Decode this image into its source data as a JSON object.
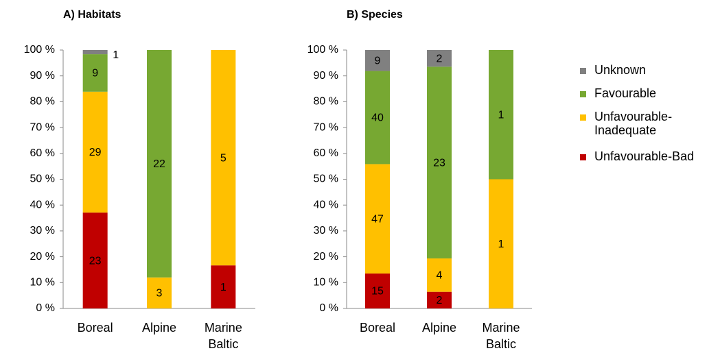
{
  "chart_data": [
    {
      "type": "bar",
      "stacked": "percent",
      "title": "A) Habitats",
      "categories": [
        "Boreal",
        "Alpine",
        "Marine\nBaltic"
      ],
      "series": [
        {
          "name": "Unfavourable-Bad",
          "color": "#c00000",
          "values": [
            23,
            null,
            1
          ]
        },
        {
          "name": "Unfavourable-\nInadequate",
          "color": "#ffc000",
          "values": [
            29,
            3,
            5
          ]
        },
        {
          "name": "Favourable",
          "color": "#77a832",
          "values": [
            9,
            22,
            null
          ]
        },
        {
          "name": "Unknown",
          "color": "#808080",
          "values": [
            1,
            null,
            null
          ]
        }
      ],
      "ylim": [
        0,
        100
      ],
      "yticks": [
        {
          "value": 0,
          "label": "0 %"
        },
        {
          "value": 10,
          "label": "10 %"
        },
        {
          "value": 20,
          "label": "20 %"
        },
        {
          "value": 30,
          "label": "30 %"
        },
        {
          "value": 40,
          "label": "40 %"
        },
        {
          "value": 50,
          "label": "50 %"
        },
        {
          "value": 60,
          "label": "60 %"
        },
        {
          "value": 70,
          "label": "70 %"
        },
        {
          "value": 80,
          "label": "80 %"
        },
        {
          "value": 90,
          "label": "90 %"
        },
        {
          "value": 100,
          "label": "100 %"
        }
      ],
      "legend": false
    },
    {
      "type": "bar",
      "stacked": "percent",
      "title": "B) Species",
      "categories": [
        "Boreal",
        "Alpine",
        "Marine\nBaltic"
      ],
      "series": [
        {
          "name": "Unfavourable-Bad",
          "color": "#c00000",
          "values": [
            15,
            2,
            null
          ]
        },
        {
          "name": "Unfavourable-\nInadequate",
          "color": "#ffc000",
          "values": [
            47,
            4,
            1
          ]
        },
        {
          "name": "Favourable",
          "color": "#77a832",
          "values": [
            40,
            23,
            1
          ]
        },
        {
          "name": "Unknown",
          "color": "#808080",
          "values": [
            9,
            2,
            null
          ]
        }
      ],
      "ylim": [
        0,
        100
      ],
      "yticks": [
        {
          "value": 0,
          "label": "0 %"
        },
        {
          "value": 10,
          "label": "10 %"
        },
        {
          "value": 20,
          "label": "20 %"
        },
        {
          "value": 30,
          "label": "30 %"
        },
        {
          "value": 40,
          "label": "40 %"
        },
        {
          "value": 50,
          "label": "50 %"
        },
        {
          "value": 60,
          "label": "60 %"
        },
        {
          "value": 70,
          "label": "70 %"
        },
        {
          "value": 80,
          "label": "80 %"
        },
        {
          "value": 90,
          "label": "90 %"
        },
        {
          "value": 100,
          "label": "100 %"
        }
      ],
      "legend": "right"
    }
  ]
}
